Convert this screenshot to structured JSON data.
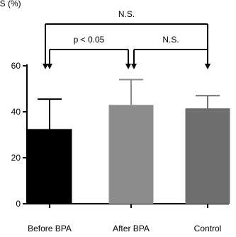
{
  "chart_data": {
    "type": "bar",
    "ylabel": "LS (%)",
    "ylim": [
      0,
      60
    ],
    "yticks": [
      0,
      20,
      40,
      60
    ],
    "categories": [
      "Before BPA",
      "After BPA",
      "Control"
    ],
    "values": [
      32.5,
      43,
      41.5
    ],
    "error_upper": [
      45.5,
      54,
      47
    ],
    "bar_colors": [
      "#000000",
      "#8c8c8c",
      "#6f6f6f"
    ],
    "comparisons": [
      {
        "from": 0,
        "to": 1,
        "label": "p < 0.05",
        "level": 1
      },
      {
        "from": 1,
        "to": 2,
        "label": "N.S.",
        "level": 1
      },
      {
        "from": 0,
        "to": 2,
        "label": "N.S.",
        "level": 2
      }
    ]
  }
}
